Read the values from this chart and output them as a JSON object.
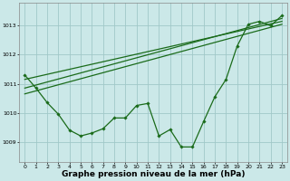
{
  "background_color": "#cbe8e8",
  "grid_color": "#a0c8c8",
  "line_color": "#1a6b1a",
  "marker_color": "#1a6b1a",
  "xlabel": "Graphe pression niveau de la mer (hPa)",
  "xlabel_fontsize": 6.5,
  "xlabel_bold": true,
  "ylabel_ticks": [
    1009,
    1010,
    1011,
    1012,
    1013
  ],
  "xlim": [
    -0.5,
    23.5
  ],
  "ylim": [
    1008.3,
    1013.8
  ],
  "x_ticks": [
    0,
    1,
    2,
    3,
    4,
    5,
    6,
    7,
    8,
    9,
    10,
    11,
    12,
    13,
    14,
    15,
    16,
    17,
    18,
    19,
    20,
    21,
    22,
    23
  ],
  "series1": [
    1011.3,
    1010.85,
    1010.35,
    1009.95,
    1009.4,
    1009.2,
    1009.3,
    1009.45,
    1009.82,
    1009.82,
    1010.25,
    1010.32,
    1009.2,
    1009.42,
    1008.82,
    1008.82,
    1009.7,
    1010.55,
    1011.15,
    1012.3,
    1013.05,
    1013.15,
    1013.0,
    1013.35
  ],
  "line2": {
    "x": [
      0,
      23
    ],
    "y": [
      1011.15,
      1013.15
    ]
  },
  "line3": {
    "x": [
      0,
      23
    ],
    "y": [
      1010.85,
      1013.25
    ]
  },
  "line4": {
    "x": [
      0,
      23
    ],
    "y": [
      1010.65,
      1013.05
    ]
  }
}
